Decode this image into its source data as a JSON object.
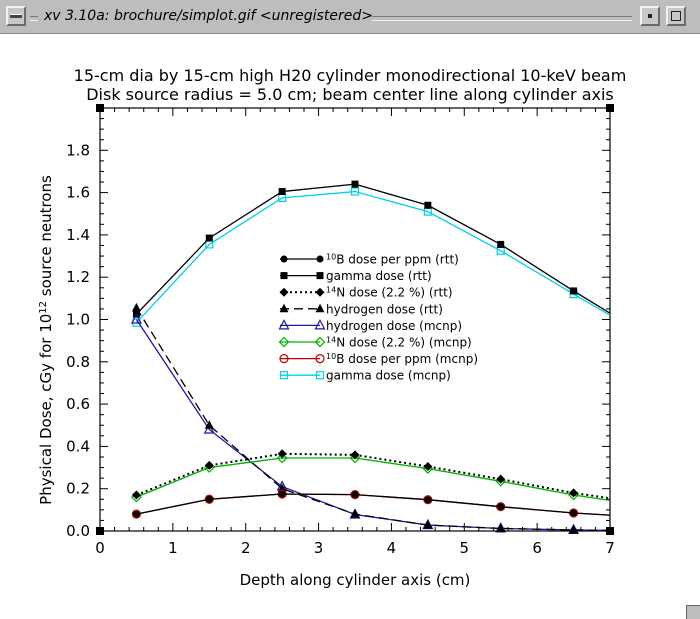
{
  "window": {
    "title": "xv 3.10a: brochure/simplot.gif <unregistered>"
  },
  "chart_data": {
    "type": "line",
    "title_line1": "15-cm dia by 15-cm high H20 cylinder monodirectional 10-keV beam",
    "title_line2": "Disk source radius = 5.0 cm; beam center line along cylinder axis",
    "xlabel": "Depth along cylinder axis (cm)",
    "ylabel": {
      "pre": "Physical Dose, cGy for 10",
      "sup": "12",
      "post": " source neutrons"
    },
    "xlim": [
      0,
      7
    ],
    "ylim": [
      0,
      2.0
    ],
    "xticks": [
      0,
      1,
      2,
      3,
      4,
      5,
      6,
      7
    ],
    "xtick_labels": [
      "0",
      "1",
      "2",
      "3",
      "4",
      "5",
      "6",
      "7"
    ],
    "yticks": [
      0,
      0.2,
      0.4,
      0.6,
      0.8,
      1.0,
      1.2,
      1.4,
      1.6,
      1.8
    ],
    "ytick_labels": [
      "0.0",
      "0.2",
      "0.4",
      "0.6",
      "0.8",
      "1.0",
      "1.2",
      "1.4",
      "1.6",
      "1.8"
    ],
    "legend_position": "center",
    "series": [
      {
        "name": "dose per ppm (rtt)",
        "name_sup": "10",
        "name_pre": "B",
        "color": "#000000",
        "dash": "solid",
        "marker": "circle-filled",
        "x": [
          0.5,
          1.5,
          2.5,
          3.5,
          4.5,
          5.5,
          6.5,
          7.0
        ],
        "y": [
          0.08,
          0.15,
          0.175,
          0.172,
          0.148,
          0.115,
          0.085,
          0.075
        ],
        "marker_count": 7
      },
      {
        "name": "gamma dose (rtt)",
        "color": "#000000",
        "dash": "solid",
        "marker": "square-filled",
        "x": [
          0.5,
          1.5,
          2.5,
          3.5,
          4.5,
          5.5,
          6.5,
          7.0
        ],
        "y": [
          1.025,
          1.385,
          1.605,
          1.64,
          1.54,
          1.355,
          1.135,
          1.03
        ],
        "marker_count": 7
      },
      {
        "name": "dose (2.2 %) (rtt)",
        "name_sup": "14",
        "name_pre": "N",
        "color": "#000000",
        "dash": "dotted",
        "marker": "diamond-filled",
        "x": [
          0.5,
          1.5,
          2.5,
          3.5,
          4.5,
          5.5,
          6.5,
          7.0
        ],
        "y": [
          0.17,
          0.31,
          0.365,
          0.36,
          0.305,
          0.245,
          0.18,
          0.155
        ],
        "marker_count": 7
      },
      {
        "name": "hydrogen dose (rtt)",
        "color": "#000000",
        "dash": "dashed",
        "marker": "triangle-filled",
        "x": [
          0.5,
          1.5,
          2.5,
          3.5,
          4.5,
          5.5,
          6.5,
          7.0
        ],
        "y": [
          1.055,
          0.5,
          0.2,
          0.08,
          0.028,
          0.012,
          0.005,
          0.003
        ],
        "marker_count": 7
      },
      {
        "name": "hydrogen dose (mcnp)",
        "color": "#1a1aa0",
        "dash": "solid",
        "marker": "triangle-open",
        "x": [
          0.5,
          1.5,
          2.5,
          3.5,
          4.5,
          5.5,
          6.5,
          7.0
        ],
        "y": [
          1.0,
          0.48,
          0.21,
          0.078,
          0.028,
          0.012,
          0.005,
          0.003
        ],
        "marker_count": 7
      },
      {
        "name": "dose (2.2 %) (mcnp)",
        "name_sup": "14",
        "name_pre": "N",
        "color": "#00b000",
        "dash": "solid",
        "marker": "diamond-open",
        "x": [
          0.5,
          1.5,
          2.5,
          3.5,
          4.5,
          5.5,
          6.5,
          7.0
        ],
        "y": [
          0.16,
          0.3,
          0.345,
          0.345,
          0.295,
          0.235,
          0.17,
          0.145
        ],
        "marker_count": 7
      },
      {
        "name": "dose per ppm (mcnp)",
        "name_sup": "10",
        "name_pre": "B",
        "color": "#c00000",
        "dash": "solid",
        "marker": "circle-open",
        "x": [
          0.5,
          1.5,
          2.5,
          3.5,
          4.5,
          5.5,
          6.5,
          7.0
        ],
        "y": [
          0.08,
          0.15,
          0.175,
          0.172,
          0.148,
          0.115,
          0.085,
          0.075
        ],
        "marker_count": 7
      },
      {
        "name": "gamma dose (mcnp)",
        "color": "#00d0e8",
        "dash": "solid",
        "marker": "square-open",
        "x": [
          0.5,
          1.5,
          2.5,
          3.5,
          4.5,
          5.5,
          6.5,
          7.0
        ],
        "y": [
          0.985,
          1.355,
          1.575,
          1.605,
          1.51,
          1.325,
          1.12,
          1.02
        ],
        "marker_count": 7
      }
    ]
  }
}
